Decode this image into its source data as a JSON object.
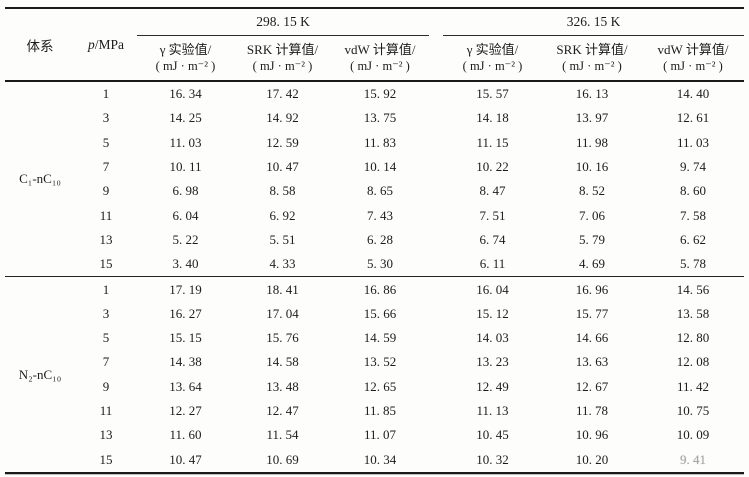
{
  "table": {
    "headers": {
      "system": "体系",
      "pressure_symbol": "p",
      "pressure_rest": "/MPa"
    },
    "temp_groups": [
      {
        "label": "298. 15 K",
        "columns": [
          {
            "name": "γ 实验值/",
            "unit": "( mJ · m⁻² )"
          },
          {
            "name": "SRK 计算值/",
            "unit": "( mJ · m⁻² )"
          },
          {
            "name": "vdW 计算值/",
            "unit": "( mJ · m⁻² )"
          }
        ]
      },
      {
        "label": "326. 15 K",
        "columns": [
          {
            "name": "γ 实验值/",
            "unit": "( mJ · m⁻² )"
          },
          {
            "name": "SRK 计算值/",
            "unit": "( mJ · m⁻² )"
          },
          {
            "name": "vdW 计算值/",
            "unit": "( mJ · m⁻² )"
          }
        ]
      }
    ],
    "blocks": [
      {
        "system": "C₁-nC₁₀",
        "rows": [
          {
            "p": "1",
            "values": [
              "16.34",
              "17.42",
              "15.92",
              "15.57",
              "16.13",
              "14.40"
            ]
          },
          {
            "p": "3",
            "values": [
              "14.25",
              "14.92",
              "13.75",
              "14.18",
              "13.97",
              "12.61"
            ]
          },
          {
            "p": "5",
            "values": [
              "11.03",
              "12.59",
              "11.83",
              "11.15",
              "11.98",
              "11.03"
            ]
          },
          {
            "p": "7",
            "values": [
              "10.11",
              "10.47",
              "10.14",
              "10.22",
              "10.16",
              "9.74"
            ]
          },
          {
            "p": "9",
            "values": [
              "6.98",
              "8.58",
              "8.65",
              "8.47",
              "8.52",
              "8.60"
            ]
          },
          {
            "p": "11",
            "values": [
              "6.04",
              "6.92",
              "7.43",
              "7.51",
              "7.06",
              "7.58"
            ]
          },
          {
            "p": "13",
            "values": [
              "5.22",
              "5.51",
              "6.28",
              "6.74",
              "5.79",
              "6.62"
            ]
          },
          {
            "p": "15",
            "values": [
              "3.40",
              "4.33",
              "5.30",
              "6.11",
              "4.69",
              "5.78"
            ]
          }
        ]
      },
      {
        "system": "N₂-nC₁₀",
        "rows": [
          {
            "p": "1",
            "values": [
              "17.19",
              "18.41",
              "16.86",
              "16.04",
              "16.96",
              "14.56"
            ]
          },
          {
            "p": "3",
            "values": [
              "16.27",
              "17.04",
              "15.66",
              "15.12",
              "15.77",
              "13.58"
            ]
          },
          {
            "p": "5",
            "values": [
              "15.15",
              "15.76",
              "14.59",
              "14.03",
              "14.66",
              "12.80"
            ]
          },
          {
            "p": "7",
            "values": [
              "14.38",
              "14.58",
              "13.52",
              "13.23",
              "13.63",
              "12.08"
            ]
          },
          {
            "p": "9",
            "values": [
              "13.64",
              "13.48",
              "12.65",
              "12.49",
              "12.67",
              "11.42"
            ]
          },
          {
            "p": "11",
            "values": [
              "12.27",
              "12.47",
              "11.85",
              "11.13",
              "11.78",
              "10.75"
            ]
          },
          {
            "p": "13",
            "values": [
              "11.60",
              "11.54",
              "11.07",
              "10.45",
              "10.96",
              "10.09"
            ]
          },
          {
            "p": "15",
            "values": [
              "10.47",
              "10.69",
              "10.34",
              "10.32",
              "10.20",
              "9.41"
            ]
          }
        ]
      }
    ],
    "faded_cells": [
      {
        "block": 1,
        "row": 7,
        "col": 5
      }
    ]
  }
}
